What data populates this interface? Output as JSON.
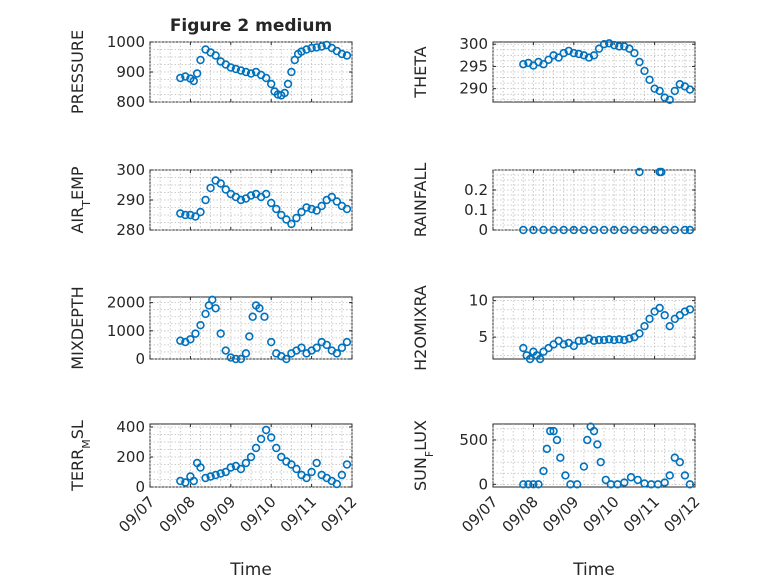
{
  "figure": {
    "title": "Figure 2 medium",
    "xlabel": "Time",
    "marker_color": "#0072BD",
    "x_tick_labels": [
      "09/07",
      "09/08",
      "09/09",
      "09/10",
      "09/11",
      "09/12"
    ]
  },
  "chart_data": [
    {
      "type": "scatter",
      "ylabel": "PRESSURE",
      "ylim": [
        800,
        1000
      ],
      "yticks": [
        800,
        900,
        1000
      ],
      "grid": "on",
      "xlim": [
        "09/07",
        "09/12"
      ],
      "series": [
        {
          "x": [
            "09/07 18:00",
            "09/07 21:00",
            "09/08 00:00",
            "09/08 02:00",
            "09/08 04:00",
            "09/08 06:00",
            "09/08 09:00",
            "09/08 12:00",
            "09/08 15:00",
            "09/08 18:00",
            "09/08 21:00",
            "09/09 00:00",
            "09/09 03:00",
            "09/09 06:00",
            "09/09 09:00",
            "09/09 12:00",
            "09/09 15:00",
            "09/09 18:00",
            "09/09 21:00",
            "09/10 00:00",
            "09/10 02:00",
            "09/10 04:00",
            "09/10 06:00",
            "09/10 08:00",
            "09/10 10:00",
            "09/10 12:00",
            "09/10 14:00",
            "09/10 16:00",
            "09/10 18:00",
            "09/10 21:00",
            "09/11 00:00",
            "09/11 03:00",
            "09/11 06:00",
            "09/11 09:00",
            "09/11 12:00",
            "09/11 15:00",
            "09/11 18:00",
            "09/11 21:00"
          ],
          "y": [
            880,
            885,
            878,
            870,
            895,
            940,
            975,
            965,
            955,
            935,
            925,
            915,
            910,
            905,
            900,
            895,
            900,
            890,
            880,
            860,
            835,
            825,
            822,
            830,
            860,
            900,
            940,
            960,
            968,
            975,
            980,
            982,
            985,
            990,
            980,
            970,
            960,
            955
          ]
        }
      ]
    },
    {
      "type": "scatter",
      "ylabel": "THETA",
      "ylim": [
        287,
        300.5
      ],
      "yticks": [
        290,
        295,
        300
      ],
      "grid": "on",
      "xlim": [
        "09/07",
        "09/12"
      ],
      "series": [
        {
          "x": [
            "09/07 18:00",
            "09/07 21:00",
            "09/08 00:00",
            "09/08 03:00",
            "09/08 06:00",
            "09/08 09:00",
            "09/08 12:00",
            "09/08 15:00",
            "09/08 18:00",
            "09/08 21:00",
            "09/09 00:00",
            "09/09 03:00",
            "09/09 06:00",
            "09/09 09:00",
            "09/09 12:00",
            "09/09 15:00",
            "09/09 18:00",
            "09/09 21:00",
            "09/10 00:00",
            "09/10 03:00",
            "09/10 06:00",
            "09/10 09:00",
            "09/10 12:00",
            "09/10 15:00",
            "09/10 18:00",
            "09/10 21:00",
            "09/11 00:00",
            "09/11 03:00",
            "09/11 06:00",
            "09/11 09:00",
            "09/11 12:00",
            "09/11 15:00",
            "09/11 18:00",
            "09/11 21:00"
          ],
          "y": [
            295.5,
            295.8,
            295.2,
            296,
            295.5,
            296.5,
            297.5,
            297,
            298,
            298.5,
            298,
            297.8,
            297.5,
            297,
            297.5,
            299,
            300,
            300.2,
            299.8,
            299.5,
            299.5,
            299,
            298,
            296,
            294,
            292,
            290,
            289.5,
            288,
            287.5,
            289.5,
            291,
            290.5,
            289.8
          ]
        }
      ]
    },
    {
      "type": "scatter",
      "ylabel": "AIR_TEMP",
      "ylim": [
        280,
        300
      ],
      "yticks": [
        280,
        290,
        300
      ],
      "grid": "on",
      "xlim": [
        "09/07",
        "09/12"
      ],
      "series": [
        {
          "x": [
            "09/07 18:00",
            "09/07 21:00",
            "09/08 00:00",
            "09/08 03:00",
            "09/08 06:00",
            "09/08 09:00",
            "09/08 12:00",
            "09/08 15:00",
            "09/08 18:00",
            "09/08 21:00",
            "09/09 00:00",
            "09/09 03:00",
            "09/09 06:00",
            "09/09 09:00",
            "09/09 12:00",
            "09/09 15:00",
            "09/09 18:00",
            "09/09 21:00",
            "09/10 00:00",
            "09/10 03:00",
            "09/10 06:00",
            "09/10 09:00",
            "09/10 12:00",
            "09/10 15:00",
            "09/10 18:00",
            "09/10 21:00",
            "09/11 00:00",
            "09/11 03:00",
            "09/11 06:00",
            "09/11 09:00",
            "09/11 12:00",
            "09/11 15:00",
            "09/11 18:00",
            "09/11 21:00"
          ],
          "y": [
            285.5,
            285,
            285,
            284.5,
            286,
            290,
            294,
            296.5,
            295.5,
            293.5,
            292,
            291,
            290,
            290.5,
            291.5,
            292,
            291,
            292,
            289,
            287,
            285,
            283.5,
            282,
            284,
            286,
            287.5,
            287,
            286.5,
            288,
            290,
            291,
            289.5,
            288,
            287
          ]
        }
      ]
    },
    {
      "type": "scatter",
      "ylabel": "RAINFALL",
      "ylim": [
        0,
        0.3
      ],
      "yticks": [
        0,
        0.1,
        0.2
      ],
      "grid": "on",
      "xlim": [
        "09/07",
        "09/12"
      ],
      "series": [
        {
          "x": [
            "09/07 18:00",
            "09/08 00:00",
            "09/08 06:00",
            "09/08 12:00",
            "09/08 18:00",
            "09/09 00:00",
            "09/09 06:00",
            "09/09 12:00",
            "09/09 18:00",
            "09/10 00:00",
            "09/10 06:00",
            "09/10 12:00",
            "09/10 18:00",
            "09/11 00:00",
            "09/11 06:00",
            "09/11 12:00",
            "09/11 18:00",
            "09/11 21:00",
            "09/10 15:00",
            "09/11 03:00",
            "09/11 04:00"
          ],
          "y": [
            0,
            0,
            0,
            0,
            0,
            0,
            0,
            0,
            0,
            0,
            0,
            0,
            0,
            0,
            0,
            0,
            0,
            0,
            0.29,
            0.29,
            0.29
          ]
        }
      ]
    },
    {
      "type": "scatter",
      "ylabel": "MIXDEPTH",
      "ylim": [
        0,
        2200
      ],
      "yticks": [
        0,
        1000,
        2000
      ],
      "grid": "on",
      "xlim": [
        "09/07",
        "09/12"
      ],
      "series": [
        {
          "x": [
            "09/07 18:00",
            "09/07 21:00",
            "09/08 00:00",
            "09/08 03:00",
            "09/08 06:00",
            "09/08 09:00",
            "09/08 11:00",
            "09/08 13:00",
            "09/08 15:00",
            "09/08 18:00",
            "09/08 21:00",
            "09/09 00:00",
            "09/09 03:00",
            "09/09 06:00",
            "09/09 09:00",
            "09/09 11:00",
            "09/09 13:00",
            "09/09 15:00",
            "09/09 17:00",
            "09/09 20:00",
            "09/10 00:00",
            "09/10 03:00",
            "09/10 06:00",
            "09/10 09:00",
            "09/10 12:00",
            "09/10 15:00",
            "09/10 18:00",
            "09/10 21:00",
            "09/11 00:00",
            "09/11 03:00",
            "09/11 06:00",
            "09/11 09:00",
            "09/11 12:00",
            "09/11 15:00",
            "09/11 18:00",
            "09/11 21:00"
          ],
          "y": [
            650,
            600,
            700,
            900,
            1200,
            1600,
            1900,
            2100,
            1800,
            900,
            300,
            50,
            0,
            0,
            200,
            800,
            1500,
            1900,
            1800,
            1500,
            600,
            200,
            100,
            0,
            200,
            300,
            400,
            200,
            300,
            400,
            600,
            500,
            300,
            200,
            400,
            600
          ]
        }
      ]
    },
    {
      "type": "scatter",
      "ylabel": "H2OMIXRA",
      "ylim": [
        2,
        10.5
      ],
      "yticks": [
        5,
        10
      ],
      "grid": "on",
      "xlim": [
        "09/07",
        "09/12"
      ],
      "series": [
        {
          "x": [
            "09/07 18:00",
            "09/07 20:00",
            "09/07 22:00",
            "09/08 00:00",
            "09/08 02:00",
            "09/08 04:00",
            "09/08 06:00",
            "09/08 09:00",
            "09/08 12:00",
            "09/08 15:00",
            "09/08 18:00",
            "09/08 21:00",
            "09/09 00:00",
            "09/09 03:00",
            "09/09 06:00",
            "09/09 09:00",
            "09/09 12:00",
            "09/09 15:00",
            "09/09 18:00",
            "09/09 21:00",
            "09/10 00:00",
            "09/10 03:00",
            "09/10 06:00",
            "09/10 09:00",
            "09/10 12:00",
            "09/10 15:00",
            "09/10 18:00",
            "09/10 21:00",
            "09/11 00:00",
            "09/11 03:00",
            "09/11 06:00",
            "09/11 09:00",
            "09/11 12:00",
            "09/11 15:00",
            "09/11 18:00",
            "09/11 21:00"
          ],
          "y": [
            3.5,
            2.5,
            2,
            3,
            2.5,
            2,
            3,
            3.5,
            4,
            4.5,
            4,
            4.2,
            3.8,
            4.5,
            4.5,
            4.8,
            4.5,
            4.6,
            4.6,
            4.7,
            4.6,
            4.7,
            4.6,
            4.8,
            5,
            5.5,
            6.5,
            7.5,
            8.5,
            9,
            8,
            6.5,
            7.5,
            8,
            8.5,
            8.8
          ]
        }
      ]
    },
    {
      "type": "scatter",
      "ylabel": "TERR_MSL",
      "ylim": [
        0,
        420
      ],
      "yticks": [
        0,
        200,
        400
      ],
      "grid": "on",
      "xlim": [
        "09/07",
        "09/12"
      ],
      "series": [
        {
          "x": [
            "09/07 18:00",
            "09/07 21:00",
            "09/08 00:00",
            "09/08 02:00",
            "09/08 04:00",
            "09/08 06:00",
            "09/08 09:00",
            "09/08 12:00",
            "09/08 15:00",
            "09/08 18:00",
            "09/08 21:00",
            "09/09 00:00",
            "09/09 03:00",
            "09/09 06:00",
            "09/09 09:00",
            "09/09 12:00",
            "09/09 15:00",
            "09/09 18:00",
            "09/09 21:00",
            "09/10 00:00",
            "09/10 03:00",
            "09/10 06:00",
            "09/10 09:00",
            "09/10 12:00",
            "09/10 15:00",
            "09/10 18:00",
            "09/10 21:00",
            "09/11 00:00",
            "09/11 03:00",
            "09/11 06:00",
            "09/11 09:00",
            "09/11 12:00",
            "09/11 15:00",
            "09/11 18:00",
            "09/11 21:00"
          ],
          "y": [
            40,
            30,
            70,
            40,
            160,
            130,
            60,
            70,
            80,
            90,
            100,
            130,
            140,
            120,
            160,
            200,
            260,
            320,
            380,
            330,
            260,
            200,
            170,
            150,
            120,
            80,
            60,
            100,
            160,
            80,
            60,
            40,
            20,
            80,
            150
          ]
        }
      ]
    },
    {
      "type": "scatter",
      "ylabel": "SUN_FLUX",
      "ylim": [
        -30,
        680
      ],
      "yticks": [
        0,
        500
      ],
      "grid": "on",
      "xlim": [
        "09/07",
        "09/12"
      ],
      "series": [
        {
          "x": [
            "09/07 18:00",
            "09/07 21:00",
            "09/08 00:00",
            "09/08 03:00",
            "09/08 06:00",
            "09/08 08:00",
            "09/08 10:00",
            "09/08 12:00",
            "09/08 14:00",
            "09/08 16:00",
            "09/08 19:00",
            "09/08 22:00",
            "09/09 02:00",
            "09/09 06:00",
            "09/09 08:00",
            "09/09 10:00",
            "09/09 12:00",
            "09/09 14:00",
            "09/09 16:00",
            "09/09 19:00",
            "09/09 22:00",
            "09/10 02:00",
            "09/10 06:00",
            "09/10 10:00",
            "09/10 14:00",
            "09/10 18:00",
            "09/10 22:00",
            "09/11 02:00",
            "09/11 06:00",
            "09/11 09:00",
            "09/11 12:00",
            "09/11 15:00",
            "09/11 18:00",
            "09/11 21:00"
          ],
          "y": [
            0,
            0,
            0,
            0,
            150,
            400,
            600,
            600,
            500,
            300,
            100,
            0,
            0,
            200,
            500,
            650,
            600,
            450,
            250,
            50,
            0,
            0,
            20,
            80,
            50,
            10,
            0,
            0,
            20,
            100,
            300,
            250,
            100,
            0
          ]
        }
      ]
    }
  ]
}
